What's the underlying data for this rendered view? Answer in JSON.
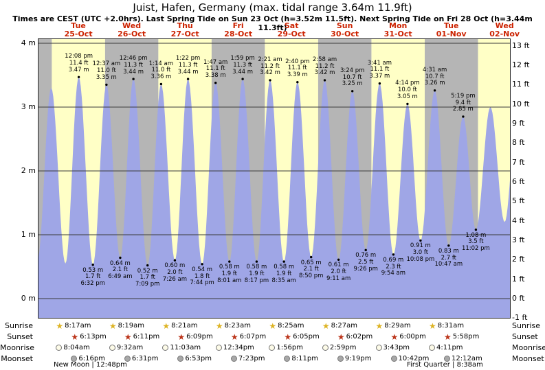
{
  "header": {
    "title": "Juist, Hafen, Germany (max. tidal range 3.64m 11.9ft)",
    "subtitle": "Times are CEST (UTC +2.0hrs). Last Spring Tide on Sun 23 Oct (h=3.52m 11.5ft). Next Spring Tide on Fri 28 Oct (h=3.44m 11.3ft)"
  },
  "colors": {
    "band_yellow": "#ffffc6",
    "band_gray": "#b5b5b5",
    "curve_fill": "#9fa6e6",
    "day_label_red": "#cc2200",
    "grid": "#3a3a3a",
    "sunrise_star": "#ddb322",
    "sunset_star": "#bb3318",
    "moon_light_fill": "#fdfbe8",
    "moon_gray_fill": "#a8a8a8"
  },
  "icons": {
    "star_glyph": "★"
  },
  "chart_data": {
    "type": "area",
    "title": "Juist, Hafen, Germany (max. tidal range 3.64m 11.9ft)",
    "subtitle": "Times are CEST (UTC +2.0hrs). Last Spring Tide on Sun 23 Oct (h=3.52m 11.5ft). Next Spring Tide on Fri 28 Oct (h=3.44m 11.3ft)",
    "x_axis": {
      "hours_start": -6,
      "hours_end": 206.4,
      "note": "hours relative to 00:00 Tue 25-Oct"
    },
    "y_axis_range_m": [
      -0.3,
      4.06
    ],
    "y_left_ticks_m": [
      4,
      3,
      2,
      1,
      0
    ],
    "y_left_unit": "m",
    "y_right_ticks_ft": [
      13,
      12,
      11,
      10,
      9,
      8,
      7,
      6,
      5,
      4,
      3,
      2,
      1,
      0,
      -1
    ],
    "y_right_unit": "ft",
    "days": [
      {
        "weekday": "Tue",
        "date": "25-Oct",
        "sunrise": "8:17am",
        "sunset": "6:13pm",
        "moonrise": "8:04am",
        "moonset": "6:16pm"
      },
      {
        "weekday": "Wed",
        "date": "26-Oct",
        "sunrise": "8:19am",
        "sunset": "6:11pm",
        "moonrise": "9:32am",
        "moonset": "6:31pm"
      },
      {
        "weekday": "Thu",
        "date": "27-Oct",
        "sunrise": "8:21am",
        "sunset": "6:09pm",
        "moonrise": "11:03am",
        "moonset": "6:53pm"
      },
      {
        "weekday": "Fri",
        "date": "28-Oct",
        "sunrise": "8:23am",
        "sunset": "6:07pm",
        "moonrise": "12:34pm",
        "moonset": "7:23pm"
      },
      {
        "weekday": "Sat",
        "date": "29-Oct",
        "sunrise": "8:25am",
        "sunset": "6:05pm",
        "moonrise": "1:56pm",
        "moonset": "8:11pm"
      },
      {
        "weekday": "Sun",
        "date": "30-Oct",
        "sunrise": "8:27am",
        "sunset": "6:02pm",
        "moonrise": "2:59pm",
        "moonset": "9:19pm"
      },
      {
        "weekday": "Mon",
        "date": "31-Oct",
        "sunrise": "8:29am",
        "sunset": "6:00pm",
        "moonrise": "3:43pm",
        "moonset": "10:42pm"
      },
      {
        "weekday": "Tue",
        "date": "01-Nov",
        "sunrise": "8:31am",
        "sunset": "5:58pm",
        "moonrise": "4:11pm",
        "moonset": "12:12am"
      },
      {
        "weekday": "Wed",
        "date": "02-Nov"
      }
    ],
    "tide_events": [
      {
        "kind": "low",
        "day": -1,
        "time": "5:30 pm",
        "height_m": 0.6,
        "annotated": false
      },
      {
        "kind": "high",
        "day": -1,
        "time": "11:44 pm",
        "height_m": 3.3,
        "annotated": false
      },
      {
        "kind": "low",
        "day": 0,
        "time": "6:08 am",
        "height_m": 0.55,
        "annotated": false
      },
      {
        "kind": "high",
        "day": 0,
        "time": "12:08 pm",
        "height_m": 3.47,
        "height_ft": 11.4,
        "annotated": true
      },
      {
        "kind": "low",
        "day": 0,
        "time": "6:32 pm",
        "height_m": 0.53,
        "height_ft": 1.7,
        "annotated": true
      },
      {
        "kind": "high",
        "day": 1,
        "time": "12:37 am",
        "height_m": 3.35,
        "height_ft": 11.0,
        "annotated": true
      },
      {
        "kind": "low",
        "day": 1,
        "time": "6:49 am",
        "height_m": 0.64,
        "height_ft": 2.1,
        "annotated": true
      },
      {
        "kind": "high",
        "day": 1,
        "time": "12:46 pm",
        "height_m": 3.44,
        "height_ft": 11.3,
        "annotated": true
      },
      {
        "kind": "low",
        "day": 1,
        "time": "7:09 pm",
        "height_m": 0.52,
        "height_ft": 1.7,
        "annotated": true
      },
      {
        "kind": "high",
        "day": 2,
        "time": "1:14 am",
        "height_m": 3.36,
        "height_ft": 11.0,
        "annotated": true
      },
      {
        "kind": "low",
        "day": 2,
        "time": "7:26 am",
        "height_m": 0.6,
        "height_ft": 2.0,
        "annotated": true
      },
      {
        "kind": "high",
        "day": 2,
        "time": "1:22 pm",
        "height_m": 3.44,
        "height_ft": 11.3,
        "annotated": true
      },
      {
        "kind": "low",
        "day": 2,
        "time": "7:44 pm",
        "height_m": 0.54,
        "height_ft": 1.8,
        "annotated": true
      },
      {
        "kind": "high",
        "day": 3,
        "time": "1:47 am",
        "height_m": 3.38,
        "height_ft": 11.1,
        "annotated": true
      },
      {
        "kind": "low",
        "day": 3,
        "time": "8:01 am",
        "height_m": 0.58,
        "height_ft": 1.9,
        "annotated": true
      },
      {
        "kind": "high",
        "day": 3,
        "time": "1:59 pm",
        "height_m": 3.44,
        "height_ft": 11.3,
        "annotated": true
      },
      {
        "kind": "low",
        "day": 3,
        "time": "8:17 pm",
        "height_m": 0.58,
        "height_ft": 1.9,
        "annotated": true
      },
      {
        "kind": "high",
        "day": 4,
        "time": "2:21 am",
        "height_m": 3.42,
        "height_ft": 11.2,
        "annotated": true
      },
      {
        "kind": "low",
        "day": 4,
        "time": "8:35 am",
        "height_m": 0.58,
        "height_ft": 1.9,
        "annotated": true
      },
      {
        "kind": "high",
        "day": 4,
        "time": "2:40 pm",
        "height_m": 3.39,
        "height_ft": 11.1,
        "annotated": true
      },
      {
        "kind": "low",
        "day": 4,
        "time": "8:50 pm",
        "height_m": 0.65,
        "height_ft": 2.1,
        "annotated": true
      },
      {
        "kind": "high",
        "day": 5,
        "time": "2:58 am",
        "height_m": 3.42,
        "height_ft": 11.2,
        "annotated": true
      },
      {
        "kind": "low",
        "day": 5,
        "time": "9:11 am",
        "height_m": 0.61,
        "height_ft": 2.0,
        "annotated": true
      },
      {
        "kind": "high",
        "day": 5,
        "time": "3:24 pm",
        "height_m": 3.25,
        "height_ft": 10.7,
        "annotated": true
      },
      {
        "kind": "low",
        "day": 5,
        "time": "9:26 pm",
        "height_m": 0.76,
        "height_ft": 2.5,
        "annotated": true
      },
      {
        "kind": "high",
        "day": 6,
        "time": "3:41 am",
        "height_m": 3.37,
        "height_ft": 11.1,
        "annotated": true
      },
      {
        "kind": "low",
        "day": 6,
        "time": "9:54 am",
        "height_m": 0.69,
        "height_ft": 2.3,
        "annotated": true
      },
      {
        "kind": "high",
        "day": 6,
        "time": "4:14 pm",
        "height_m": 3.05,
        "height_ft": 10.0,
        "annotated": true
      },
      {
        "kind": "low",
        "day": 6,
        "time": "10:08 pm",
        "height_m": 0.91,
        "height_ft": 3.0,
        "annotated": true
      },
      {
        "kind": "high",
        "day": 7,
        "time": "4:31 am",
        "height_m": 3.26,
        "height_ft": 10.7,
        "annotated": true
      },
      {
        "kind": "low",
        "day": 7,
        "time": "10:47 am",
        "height_m": 0.83,
        "height_ft": 2.7,
        "annotated": true
      },
      {
        "kind": "high",
        "day": 7,
        "time": "5:19 pm",
        "height_m": 2.85,
        "height_ft": 9.4,
        "annotated": true
      },
      {
        "kind": "low",
        "day": 7,
        "time": "11:02 pm",
        "height_m": 1.08,
        "height_ft": 3.5,
        "annotated": true
      },
      {
        "kind": "high",
        "day": 8,
        "time": "5:35 am",
        "height_m": 3.0,
        "annotated": false
      },
      {
        "kind": "low",
        "day": 8,
        "time": "12:00 pm",
        "height_m": 1.2,
        "annotated": false
      },
      {
        "kind": "high",
        "day": 8,
        "time": "6:10 pm",
        "height_m": 3.2,
        "annotated": false
      }
    ]
  },
  "astro": {
    "rows": [
      {
        "label": "Sunrise",
        "key": "sunrise",
        "icon": "star",
        "icon_name": "sunrise-star-icon",
        "color_key": "sunrise_star",
        "offset": "rise"
      },
      {
        "label": "Sunset",
        "key": "sunset",
        "icon": "star",
        "icon_name": "sunset-star-icon",
        "color_key": "sunset_star",
        "offset": "set"
      },
      {
        "label": "Moonrise",
        "key": "moonrise",
        "icon": "circle-light",
        "icon_name": "moonrise-icon",
        "color_key": "moon_light_fill",
        "offset": "rise"
      },
      {
        "label": "Moonset",
        "key": "moonset",
        "icon": "circle-dark",
        "icon_name": "moonset-icon",
        "color_key": "moon_gray_fill",
        "offset": "set"
      }
    ]
  },
  "moon_phases": [
    {
      "text": "New Moon | 12:48pm"
    },
    {
      "text": "First Quarter | 8:38am"
    }
  ]
}
